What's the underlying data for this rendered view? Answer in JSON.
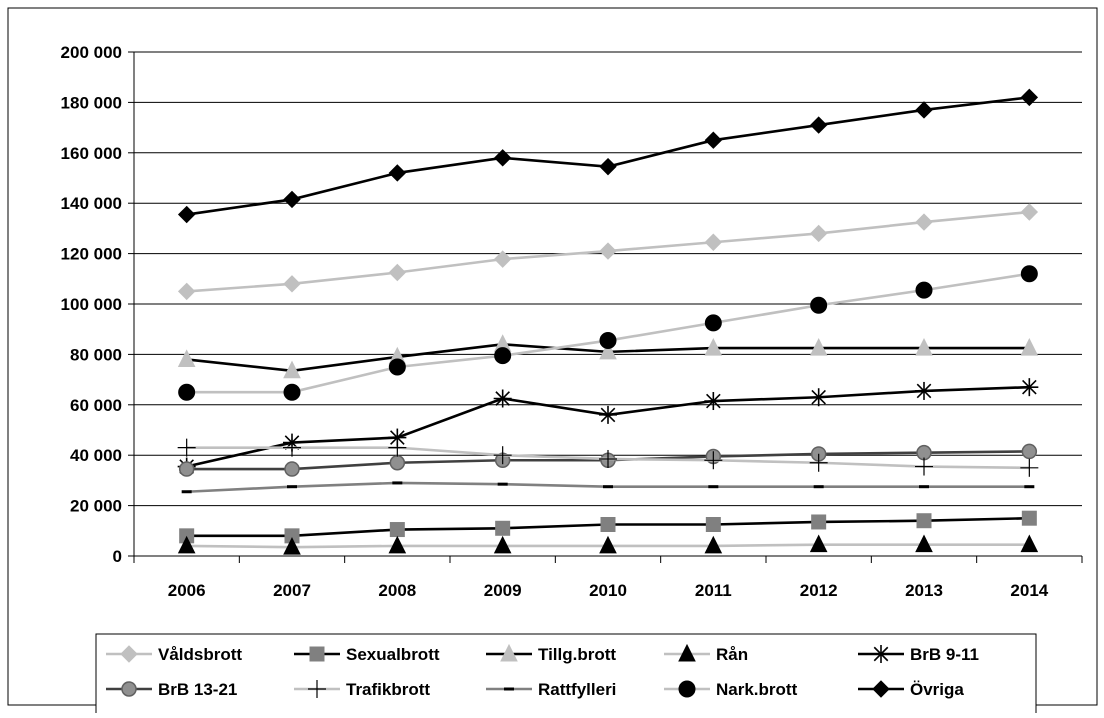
{
  "chart_data": {
    "type": "line",
    "title": "",
    "xlabel": "",
    "ylabel": "",
    "categories": [
      "2006",
      "2007",
      "2008",
      "2009",
      "2010",
      "2011",
      "2012",
      "2013",
      "2014"
    ],
    "ylim": [
      0,
      200000
    ],
    "yticks": [
      0,
      20000,
      40000,
      60000,
      80000,
      100000,
      120000,
      140000,
      160000,
      180000,
      200000
    ],
    "ytick_labels": [
      "0",
      "20 000",
      "40 000",
      "60 000",
      "80 000",
      "100 000",
      "120 000",
      "140 000",
      "160 000",
      "180 000",
      "200 000"
    ],
    "grid": "horizontal",
    "legend_position": "bottom",
    "series": [
      {
        "name": "Våldsbrott",
        "color": "#c0c0c0",
        "marker": "diamond",
        "values": [
          105000,
          108000,
          112500,
          117800,
          121000,
          124500,
          128000,
          132500,
          136500
        ]
      },
      {
        "name": "Sexualbrott",
        "color": "#000000",
        "marker": "square-gray",
        "values": [
          8000,
          8000,
          10500,
          11000,
          12500,
          12500,
          13500,
          14000,
          15000
        ]
      },
      {
        "name": "Tillg.brott",
        "color": "#000000",
        "marker": "triangle-gray",
        "values": [
          78000,
          73500,
          79000,
          84000,
          81000,
          82500,
          82500,
          82500,
          82500
        ]
      },
      {
        "name": "Rån",
        "color": "#c0c0c0",
        "marker": "triangle-black",
        "values": [
          4000,
          3500,
          4000,
          4000,
          4000,
          4000,
          4500,
          4500,
          4500
        ]
      },
      {
        "name": "BrB 9-11",
        "color": "#000000",
        "marker": "star",
        "values": [
          35500,
          45000,
          47000,
          62500,
          56000,
          61500,
          63000,
          65500,
          67000
        ]
      },
      {
        "name": "BrB 13-21",
        "color": "#404040",
        "marker": "circle-gray",
        "values": [
          34500,
          34500,
          37000,
          38000,
          38000,
          39500,
          40500,
          41000,
          41500
        ]
      },
      {
        "name": "Trafikbrott",
        "color": "#c0c0c0",
        "marker": "plus",
        "values": [
          43000,
          43000,
          43000,
          40000,
          38500,
          38000,
          37000,
          35500,
          35000
        ]
      },
      {
        "name": "Rattfylleri",
        "color": "#808080",
        "marker": "dash",
        "values": [
          25500,
          27500,
          29000,
          28500,
          27500,
          27500,
          27500,
          27500,
          27500
        ]
      },
      {
        "name": "Nark.brott",
        "color": "#c0c0c0",
        "marker": "circle-black",
        "values": [
          65000,
          65000,
          75000,
          79500,
          85500,
          92500,
          99500,
          105500,
          112000
        ]
      },
      {
        "name": "Övriga",
        "color": "#000000",
        "marker": "diamond-black",
        "values": [
          135500,
          141500,
          152000,
          158000,
          154500,
          165000,
          171000,
          177000,
          182000
        ]
      }
    ]
  }
}
